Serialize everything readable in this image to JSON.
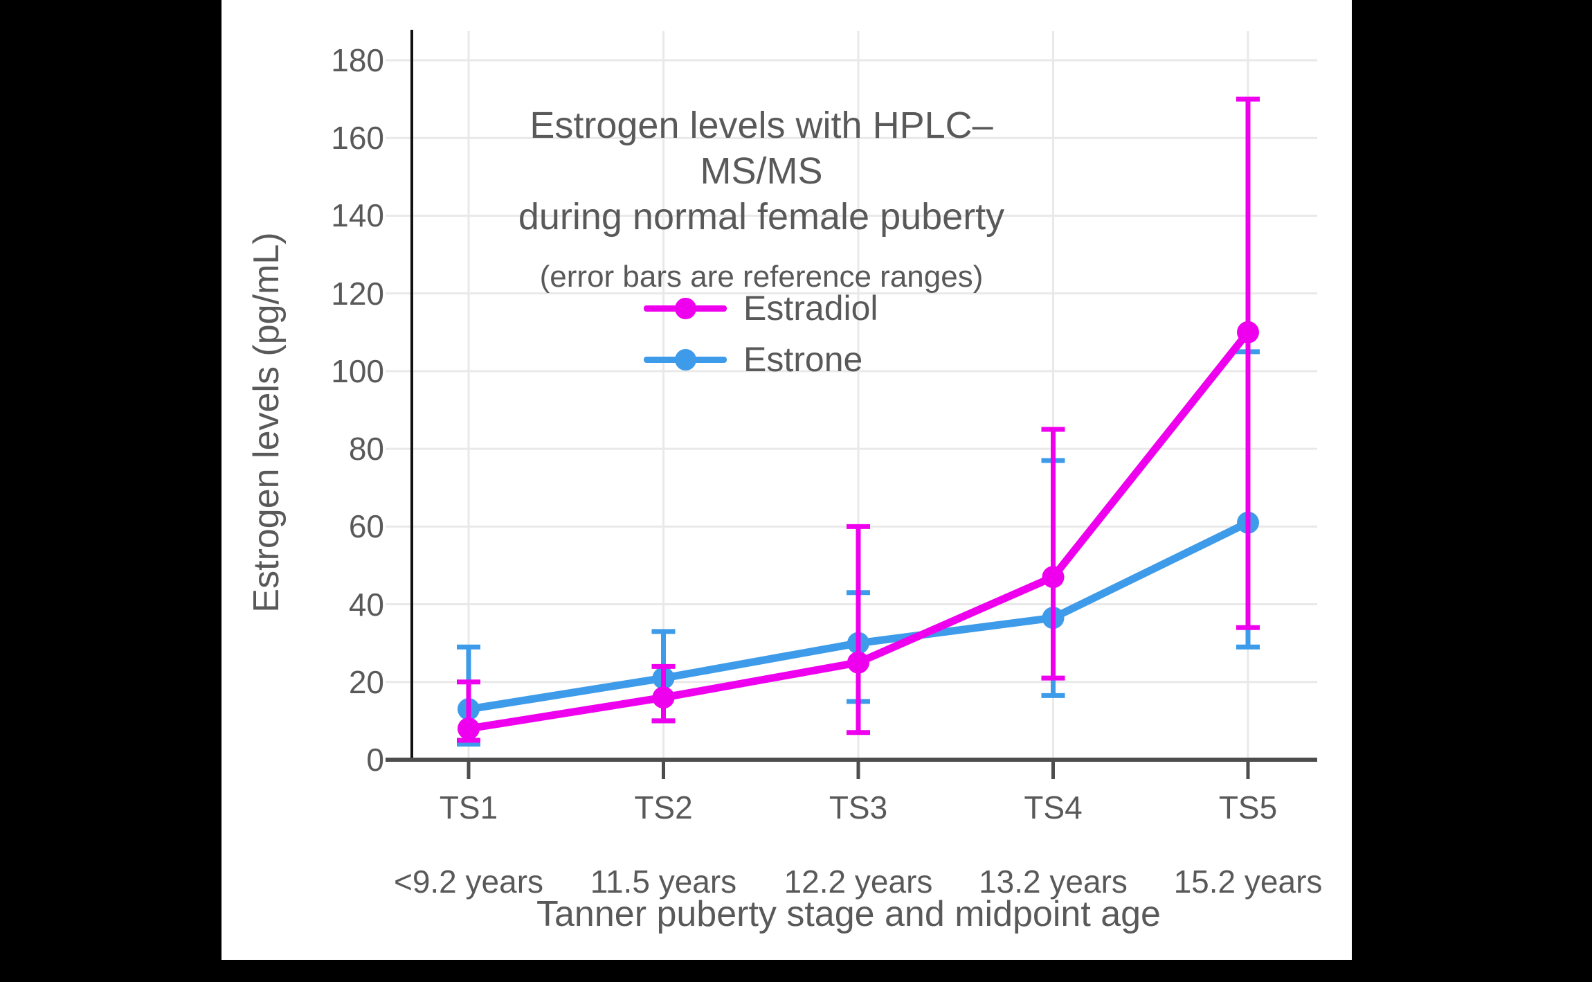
{
  "window": {
    "background": "#000000",
    "panel_background": "#ffffff"
  },
  "chart_data": {
    "type": "line",
    "title": "Estrogen levels with HPLC–MS/MS",
    "title_line2": "during normal female puberty",
    "subtitle": "(error bars are reference ranges)",
    "xlabel": "Tanner puberty stage and midpoint age",
    "ylabel": "Estrogen levels (pg/mL)",
    "x_categories": [
      {
        "stage": "TS1",
        "age": "<9.2 years"
      },
      {
        "stage": "TS2",
        "age": "11.5 years"
      },
      {
        "stage": "TS3",
        "age": "12.2 years"
      },
      {
        "stage": "TS4",
        "age": "13.2 years"
      },
      {
        "stage": "TS5",
        "age": "15.2 years"
      }
    ],
    "yticks": [
      0,
      20,
      40,
      60,
      80,
      100,
      120,
      140,
      160,
      180
    ],
    "ylim": [
      0,
      187
    ],
    "grid": true,
    "legend_position": "upper-left-of-center",
    "error_bar_meaning": "reference ranges",
    "series": [
      {
        "name": "Estradiol",
        "color": "#EE00EE",
        "values": [
          8,
          16,
          25,
          47,
          110
        ],
        "err_low": [
          5,
          10,
          7,
          21,
          34
        ],
        "err_high": [
          20,
          24,
          60,
          85,
          170
        ]
      },
      {
        "name": "Estrone",
        "color": "#3D9BE9",
        "values": [
          13,
          21,
          30,
          36.5,
          61
        ],
        "err_low": [
          4,
          10,
          15,
          16.5,
          29
        ],
        "err_high": [
          29,
          33,
          43,
          77,
          105
        ]
      }
    ],
    "style_colors": {
      "text": "#595959",
      "grid": "#E9E9E9",
      "axis_left": "#111111",
      "axis_bottom": "#4D4D4D"
    }
  }
}
